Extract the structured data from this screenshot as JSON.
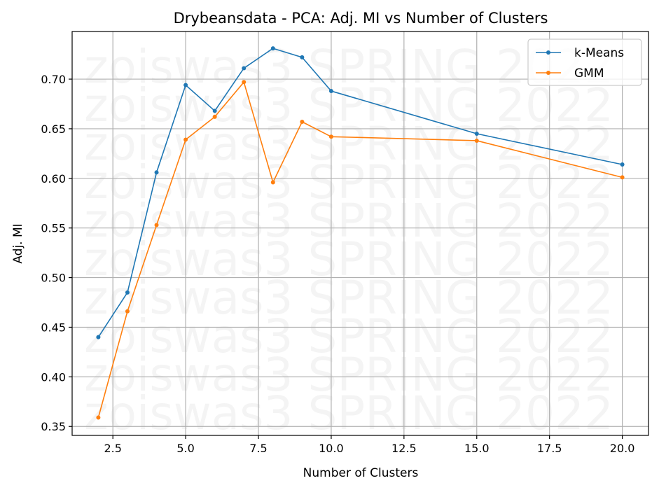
{
  "chart_data": {
    "type": "line",
    "title": "Drybeansdata - PCA: Adj. MI vs Number of Clusters",
    "xlabel": "Number of Clusters",
    "ylabel": "Adj. MI",
    "xlim": [
      1.1,
      20.9
    ],
    "ylim": [
      0.341,
      0.748
    ],
    "xticks": [
      2.5,
      5.0,
      7.5,
      10.0,
      12.5,
      15.0,
      17.5,
      20.0
    ],
    "xtick_labels": [
      "2.5",
      "5.0",
      "7.5",
      "10.0",
      "12.5",
      "15.0",
      "17.5",
      "20.0"
    ],
    "yticks": [
      0.35,
      0.4,
      0.45,
      0.5,
      0.55,
      0.6,
      0.65,
      0.7
    ],
    "ytick_labels": [
      "0.35",
      "0.40",
      "0.45",
      "0.50",
      "0.55",
      "0.60",
      "0.65",
      "0.70"
    ],
    "grid": true,
    "legend_position": "top-right",
    "series": [
      {
        "name": "k-Means",
        "color": "#1f77b4",
        "x": [
          2,
          3,
          4,
          5,
          6,
          7,
          8,
          9,
          10,
          15,
          20
        ],
        "y": [
          0.44,
          0.485,
          0.606,
          0.694,
          0.668,
          0.711,
          0.731,
          0.722,
          0.688,
          0.645,
          0.614
        ]
      },
      {
        "name": "GMM",
        "color": "#ff7f0e",
        "x": [
          2,
          3,
          4,
          5,
          6,
          7,
          8,
          9,
          10,
          15,
          20
        ],
        "y": [
          0.359,
          0.466,
          0.553,
          0.639,
          0.662,
          0.697,
          0.596,
          0.657,
          0.642,
          0.638,
          0.601
        ]
      }
    ],
    "watermark": "zoiswas3 SPRING 2022"
  }
}
